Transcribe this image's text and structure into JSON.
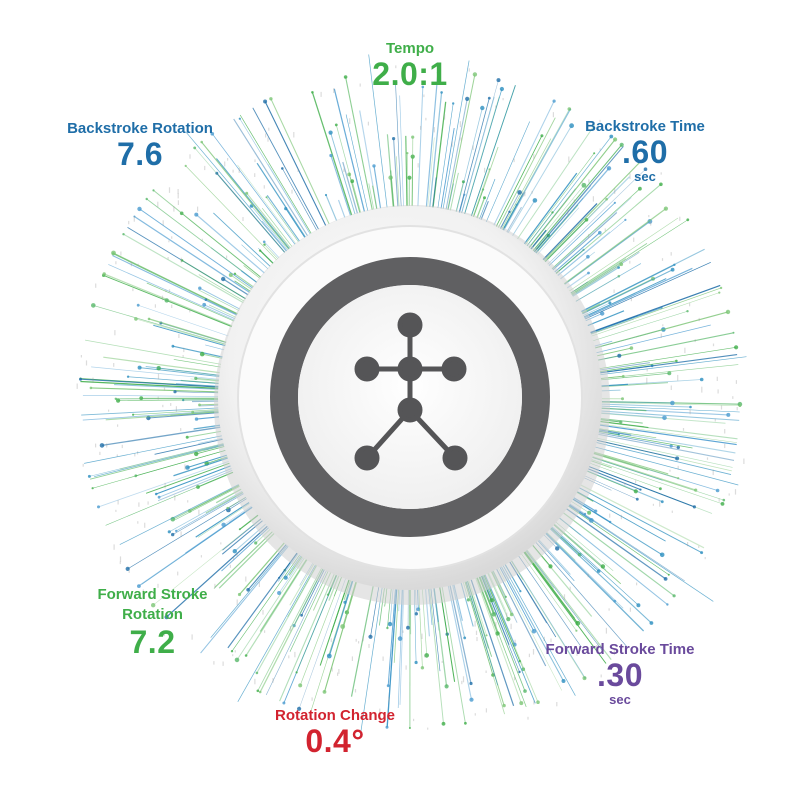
{
  "colors": {
    "green": "#3fae49",
    "blue": "#1f6ea8",
    "purple": "#6a4a9c",
    "red": "#d2232f",
    "ring": "#606062",
    "device": "#f3f3f3"
  },
  "metrics": {
    "tempo": {
      "label": "Tempo",
      "value": "2.0:1"
    },
    "backstroke_rotation": {
      "label": "Backstroke Rotation",
      "value": "7.6"
    },
    "backstroke_time": {
      "label": "Backstroke Time",
      "value": ".60",
      "unit": "sec"
    },
    "forward_stroke_rotation": {
      "label_line1": "Forward Stroke",
      "label_line2": "Rotation",
      "value": "7.2"
    },
    "forward_stroke_time": {
      "label": "Forward Stroke Time",
      "value": ".30",
      "unit": "sec"
    },
    "rotation_change": {
      "label": "Rotation Change",
      "value": "0.4°"
    }
  },
  "device": {
    "icon": "stick-figure-icon"
  }
}
